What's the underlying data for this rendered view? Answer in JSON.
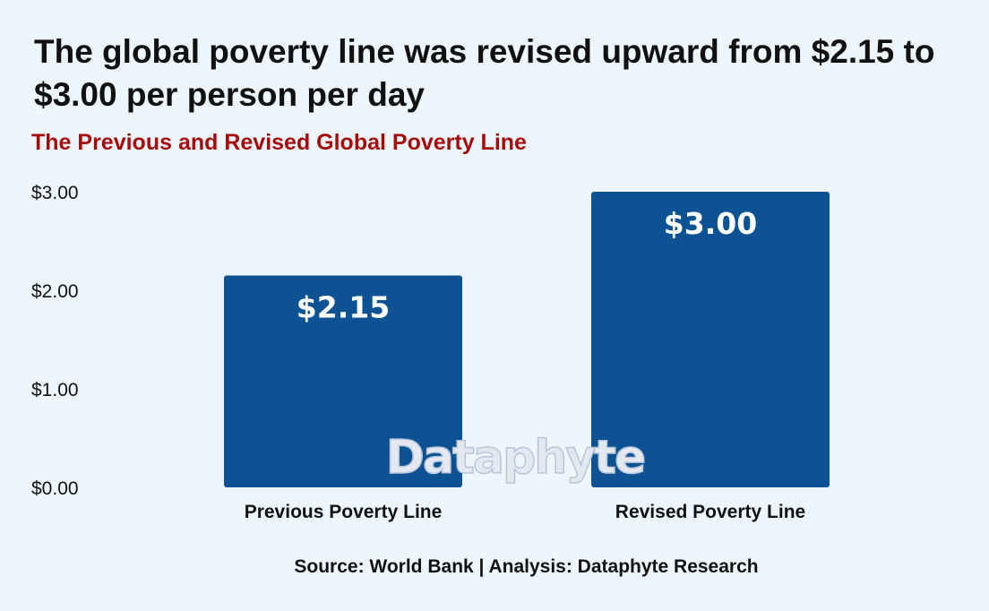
{
  "headline": "The global poverty line was revised upward from $2.15 to $3.00 per person per day",
  "source": "Source: World Bank | Analysis: Dataphyte Research",
  "watermark": "Dataphyte",
  "colors": {
    "bar": "#0d5394",
    "subtitle": "#a50b0b",
    "background": "#eef6fd"
  },
  "chart_data": {
    "type": "bar",
    "title": "The Previous and Revised Global Poverty Line",
    "xlabel": "",
    "ylabel": "",
    "categories": [
      "Previous Poverty Line",
      "Revised Poverty Line"
    ],
    "values": [
      2.15,
      3.0
    ],
    "data_labels": [
      "$2.15",
      "$3.00"
    ],
    "yticks": [
      0,
      1,
      2,
      3
    ],
    "ytick_labels": [
      "$0.00",
      "$1.00",
      "$2.00",
      "$3.00"
    ],
    "ylim": [
      0,
      3
    ],
    "grid": false,
    "legend": "none"
  }
}
